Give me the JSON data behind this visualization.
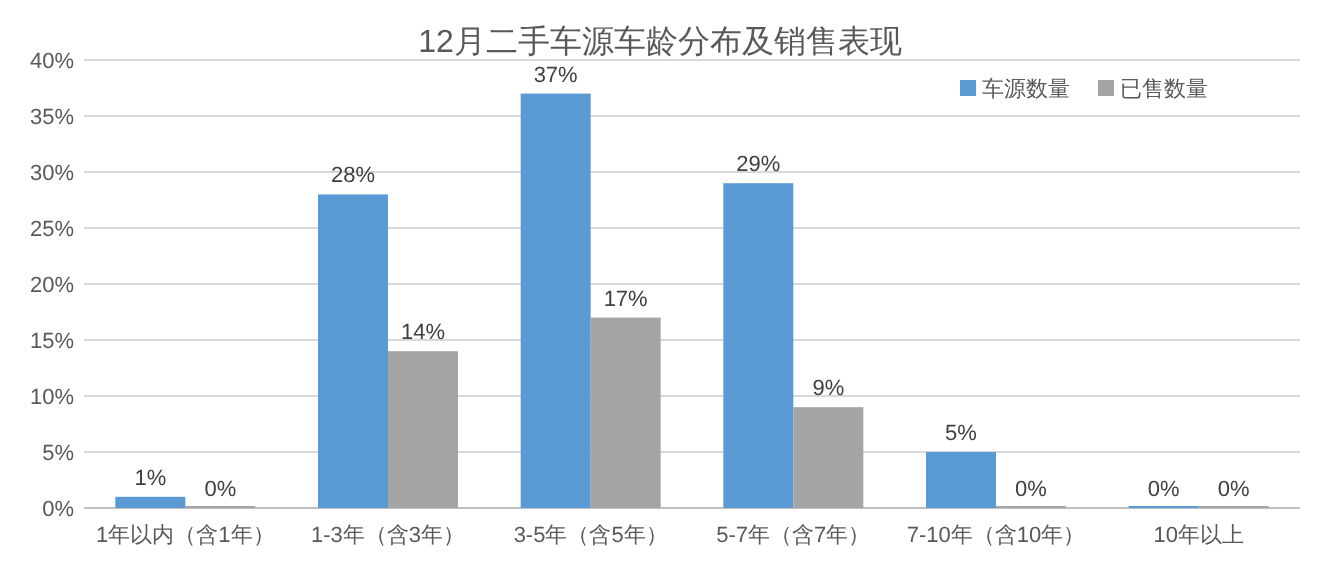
{
  "chart_data": {
    "type": "bar",
    "title": "12月二手车源车龄分布及销售表现",
    "categories": [
      "1年以内（含1年）",
      "1-3年（含3年）",
      "3-5年（含5年）",
      "5-7年（含7年）",
      "7-10年（含10年）",
      "10年以上"
    ],
    "series": [
      {
        "name": "车源数量",
        "color": "#5b9bd5",
        "values": [
          1,
          28,
          37,
          29,
          5,
          0
        ],
        "value_labels": [
          "1%",
          "28%",
          "37%",
          "29%",
          "5%",
          "0%"
        ]
      },
      {
        "name": "已售数量",
        "color": "#a5a5a5",
        "values": [
          0,
          14,
          17,
          9,
          0,
          0
        ],
        "value_labels": [
          "0%",
          "14%",
          "17%",
          "9%",
          "0%",
          "0%"
        ]
      }
    ],
    "ylim": [
      0,
      40
    ],
    "yticks": [
      {
        "value": 0,
        "label": "0%"
      },
      {
        "value": 5,
        "label": "5%"
      },
      {
        "value": 10,
        "label": "10%"
      },
      {
        "value": 15,
        "label": "15%"
      },
      {
        "value": 20,
        "label": "20%"
      },
      {
        "value": 25,
        "label": "25%"
      },
      {
        "value": 30,
        "label": "30%"
      },
      {
        "value": 35,
        "label": "35%"
      },
      {
        "value": 40,
        "label": "40%"
      }
    ],
    "grid": "y",
    "legend": "top right"
  }
}
